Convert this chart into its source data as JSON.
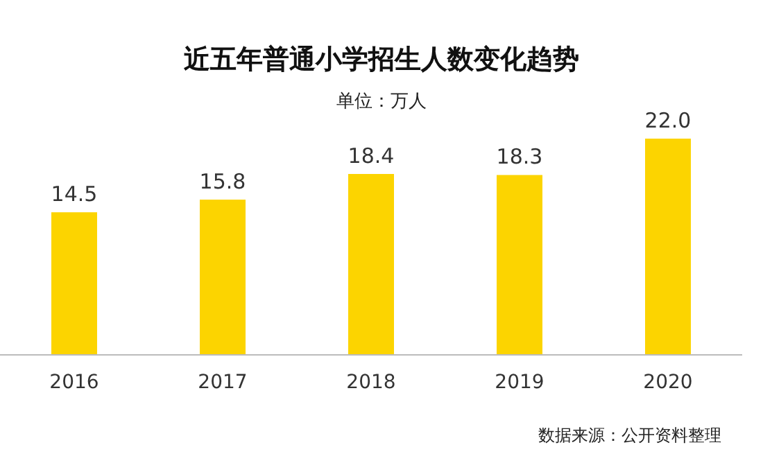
{
  "chart_data": {
    "type": "bar",
    "title": "近五年普通小学招生人数变化趋势",
    "subtitle": "单位：万人",
    "categories": [
      "2016",
      "2017",
      "2018",
      "2019",
      "2020"
    ],
    "values": [
      14.5,
      15.8,
      18.4,
      18.3,
      22.0
    ],
    "value_labels": [
      "14.5",
      "15.8",
      "18.4",
      "18.3",
      "22.0"
    ],
    "color": "#fcd400",
    "grid": false,
    "legend": false,
    "tick_labels": "x",
    "annotations": [
      "数据来源：公开资料整理"
    ]
  }
}
